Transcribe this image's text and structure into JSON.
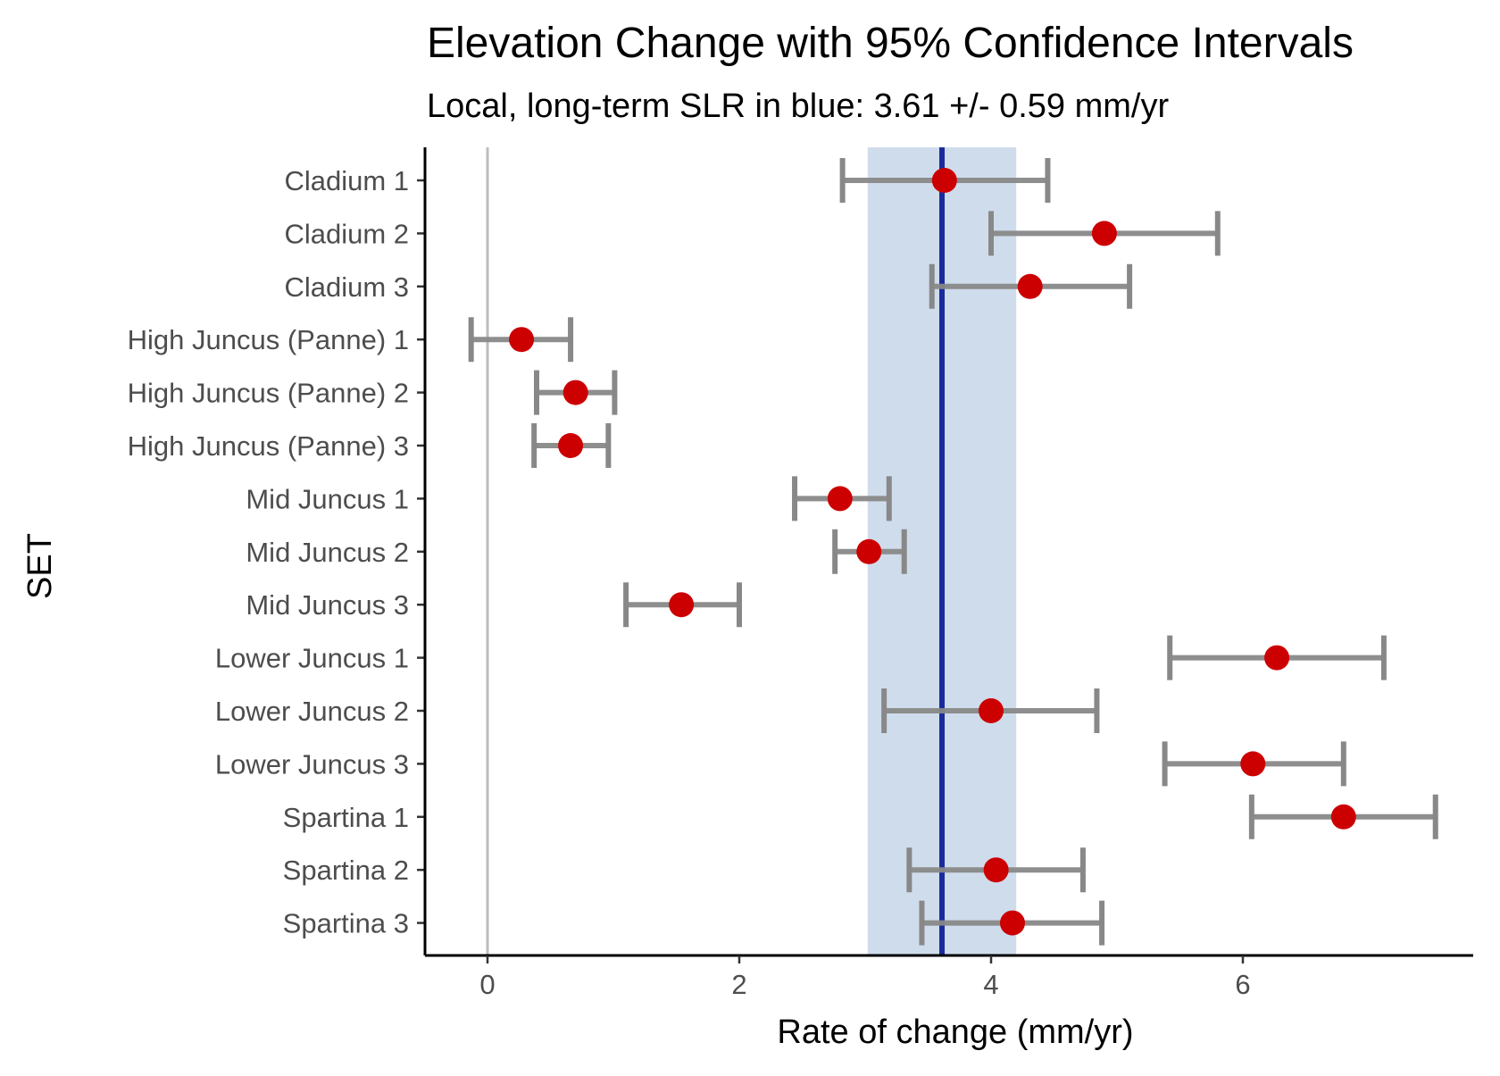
{
  "chart_data": {
    "type": "errorbar",
    "title": "Elevation Change with 95% Confidence Intervals",
    "subtitle": "Local, long-term SLR in blue: 3.61 +/- 0.59 mm/yr",
    "xlabel": "Rate of change (mm/yr)",
    "ylabel": "SET",
    "xlim": [
      -0.5,
      7.9
    ],
    "xticks": [
      0,
      2,
      4,
      6
    ],
    "reference_line": {
      "x": 0,
      "color": "#bdbdbd"
    },
    "slr": {
      "value": 3.61,
      "lower": 3.02,
      "upper": 4.2,
      "line_color": "#1a2b9c",
      "band_color": "#cfdcec"
    },
    "point_color": "#cc0000",
    "errorbar_color": "#888888",
    "grid": false,
    "categories": [
      "Cladium 1",
      "Cladium 2",
      "Cladium 3",
      "High Juncus (Panne) 1",
      "High Juncus (Panne) 2",
      "High Juncus (Panne) 3",
      "Mid Juncus 1",
      "Mid Juncus 2",
      "Mid Juncus 3",
      "Lower Juncus 1",
      "Lower Juncus 2",
      "Lower Juncus 3",
      "Spartina 1",
      "Spartina 2",
      "Spartina 3"
    ],
    "series": [
      {
        "values": [
          3.63,
          4.9,
          4.31,
          0.27,
          0.7,
          0.66,
          2.8,
          3.03,
          1.54,
          6.27,
          4.0,
          6.08,
          6.8,
          4.04,
          4.17
        ],
        "lower": [
          2.82,
          4.0,
          3.53,
          -0.13,
          0.39,
          0.37,
          2.44,
          2.76,
          1.1,
          5.42,
          3.15,
          5.38,
          6.07,
          3.35,
          3.45
        ],
        "upper": [
          4.45,
          5.8,
          5.1,
          0.66,
          1.01,
          0.96,
          3.19,
          3.31,
          2.0,
          7.12,
          4.84,
          6.8,
          7.53,
          4.73,
          4.88
        ]
      }
    ]
  }
}
